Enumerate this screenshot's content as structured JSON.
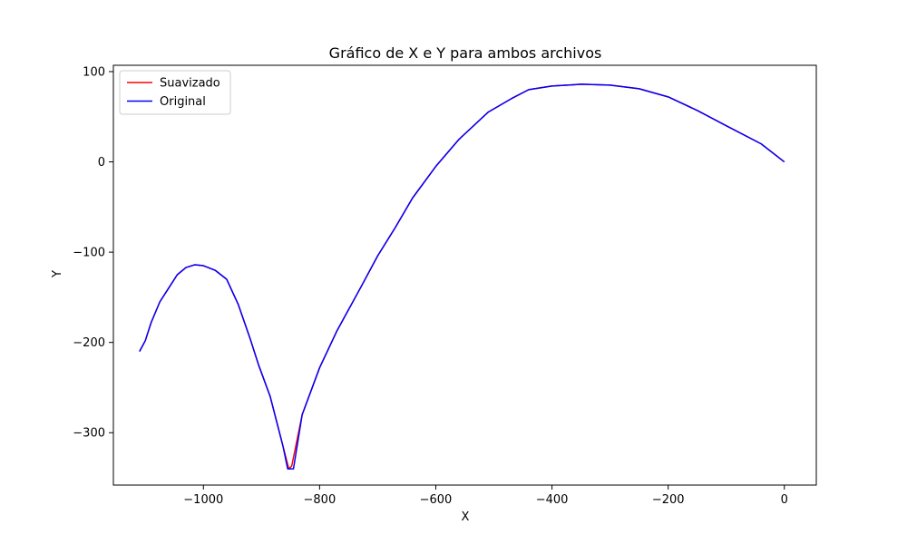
{
  "chart_data": {
    "type": "line",
    "title": "Gráfico de X e Y para ambos archivos",
    "xlabel": "X",
    "ylabel": "Y",
    "xlim": [
      -1155,
      55
    ],
    "ylim": [
      -358,
      107
    ],
    "xticks": [
      -1000,
      -800,
      -600,
      -400,
      -200,
      0
    ],
    "xtick_labels": [
      "−1000",
      "−800",
      "−600",
      "−400",
      "−200",
      "0"
    ],
    "yticks": [
      100,
      0,
      -100,
      -200,
      -300
    ],
    "ytick_labels": [
      "100",
      "0",
      "−100",
      "−200",
      "−300"
    ],
    "grid": false,
    "legend": "top-left",
    "series": [
      {
        "name": "Suavizado",
        "color": "#ff0000",
        "points": [
          [
            0,
            0
          ],
          [
            -40,
            20
          ],
          [
            -100,
            40
          ],
          [
            -150,
            57
          ],
          [
            -200,
            72
          ],
          [
            -250,
            81
          ],
          [
            -300,
            85
          ],
          [
            -350,
            86
          ],
          [
            -400,
            84
          ],
          [
            -440,
            80
          ],
          [
            -470,
            70
          ],
          [
            -510,
            55
          ],
          [
            -560,
            25
          ],
          [
            -600,
            -5
          ],
          [
            -640,
            -40
          ],
          [
            -670,
            -73
          ],
          [
            -700,
            -104
          ],
          [
            -730,
            -140
          ],
          [
            -770,
            -187
          ],
          [
            -800,
            -228
          ],
          [
            -830,
            -280
          ],
          [
            -848,
            -337
          ],
          [
            -853,
            -340
          ],
          [
            -863,
            -315
          ],
          [
            -885,
            -260
          ],
          [
            -905,
            -225
          ],
          [
            -920,
            -195
          ],
          [
            -940,
            -158
          ],
          [
            -960,
            -130
          ],
          [
            -980,
            -120
          ],
          [
            -1000,
            -115
          ],
          [
            -1015,
            -114
          ],
          [
            -1030,
            -117
          ],
          [
            -1045,
            -125
          ],
          [
            -1060,
            -140
          ],
          [
            -1075,
            -155
          ],
          [
            -1090,
            -178
          ],
          [
            -1100,
            -198
          ],
          [
            -1110,
            -210
          ]
        ]
      },
      {
        "name": "Original",
        "color": "#0000ff",
        "points": [
          [
            0,
            0
          ],
          [
            -40,
            20
          ],
          [
            -100,
            40
          ],
          [
            -150,
            57
          ],
          [
            -200,
            72
          ],
          [
            -250,
            81
          ],
          [
            -300,
            85
          ],
          [
            -350,
            86
          ],
          [
            -400,
            84
          ],
          [
            -440,
            80
          ],
          [
            -470,
            70
          ],
          [
            -510,
            55
          ],
          [
            -560,
            25
          ],
          [
            -600,
            -5
          ],
          [
            -640,
            -40
          ],
          [
            -670,
            -73
          ],
          [
            -700,
            -104
          ],
          [
            -730,
            -140
          ],
          [
            -770,
            -187
          ],
          [
            -800,
            -228
          ],
          [
            -830,
            -280
          ],
          [
            -845,
            -340
          ],
          [
            -855,
            -340
          ],
          [
            -863,
            -315
          ],
          [
            -885,
            -260
          ],
          [
            -905,
            -225
          ],
          [
            -920,
            -195
          ],
          [
            -940,
            -158
          ],
          [
            -960,
            -130
          ],
          [
            -980,
            -120
          ],
          [
            -1000,
            -115
          ],
          [
            -1015,
            -114
          ],
          [
            -1030,
            -117
          ],
          [
            -1045,
            -125
          ],
          [
            -1060,
            -140
          ],
          [
            -1075,
            -155
          ],
          [
            -1090,
            -178
          ],
          [
            -1100,
            -198
          ],
          [
            -1110,
            -210
          ]
        ]
      }
    ]
  }
}
